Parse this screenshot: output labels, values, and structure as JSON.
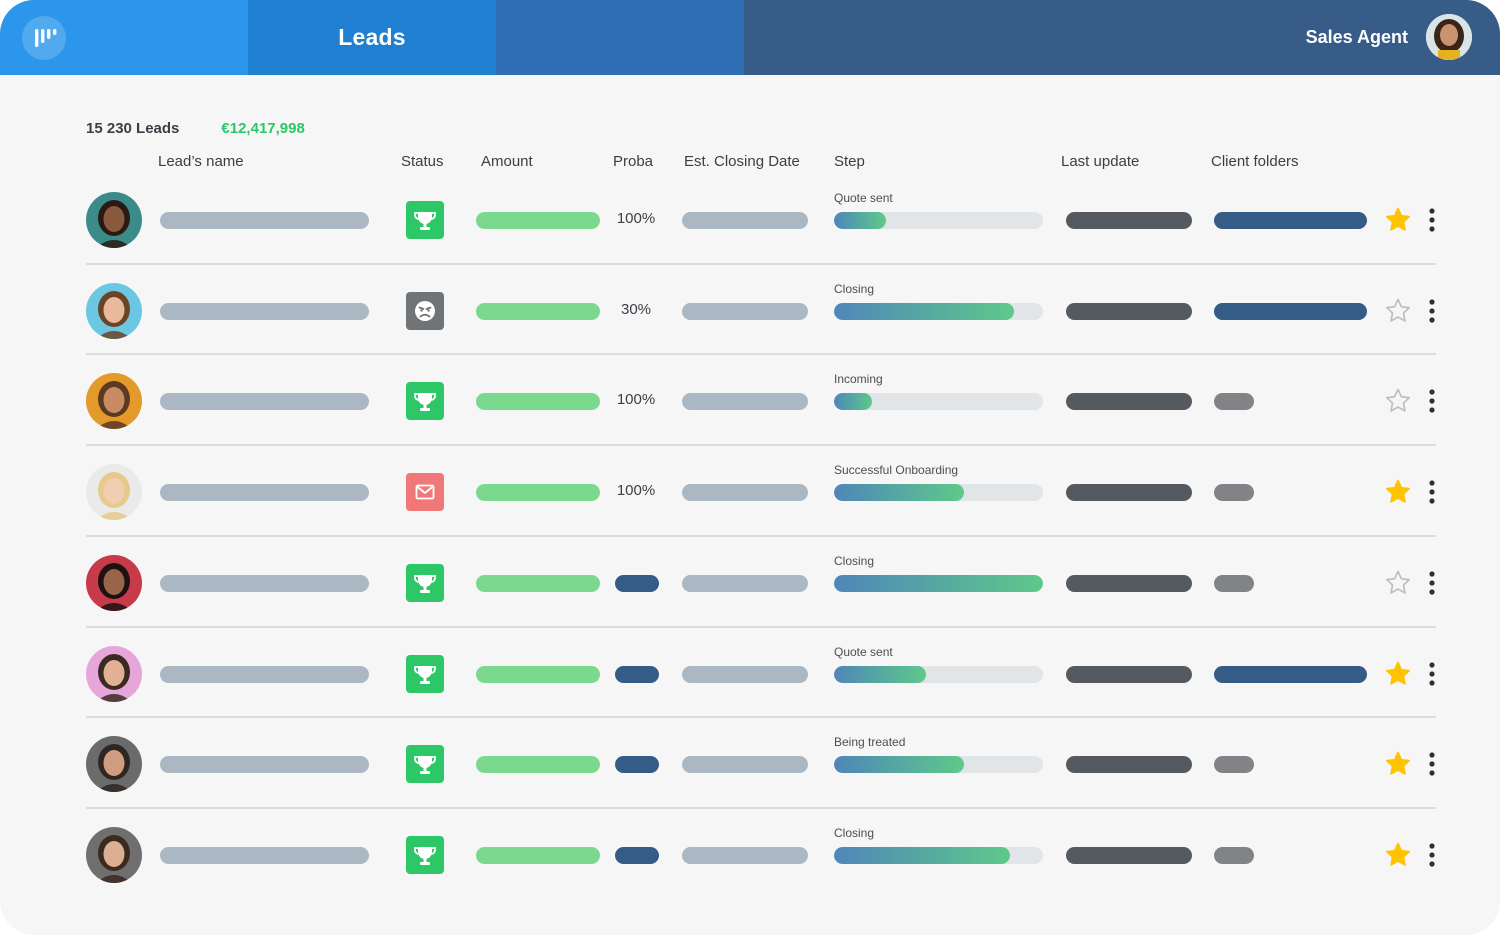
{
  "header": {
    "active_tab": "Leads",
    "user_name": "Sales Agent",
    "colors": [
      "#2b96eb",
      "#1f7fd0",
      "#2f6eb5",
      "#365c87"
    ]
  },
  "summary": {
    "lead_count": "15 230 Leads",
    "total_amount": "€12,417,998"
  },
  "columns": {
    "name": "Lead’s name",
    "status": "Status",
    "amount": "Amount",
    "proba": "Proba",
    "closing": "Est. Closing Date",
    "step": "Step",
    "update": "Last update",
    "folders": "Client folders"
  },
  "rows": [
    {
      "status": "won",
      "proba": "100%",
      "step": "Quote sent",
      "progress": 0.25,
      "folder": "long",
      "starred": true
    },
    {
      "status": "lost",
      "proba": "30%",
      "step": "Closing",
      "progress": 0.86,
      "folder": "long",
      "starred": false
    },
    {
      "status": "won",
      "proba": "100%",
      "step": "Incoming",
      "progress": 0.18,
      "folder": "short",
      "starred": false
    },
    {
      "status": "mail",
      "proba": "100%",
      "step": "Successful Onboarding",
      "progress": 0.62,
      "folder": "short",
      "starred": true
    },
    {
      "status": "won",
      "proba": "",
      "step": "Closing",
      "progress": 1.0,
      "folder": "short",
      "starred": false
    },
    {
      "status": "won",
      "proba": "",
      "step": "Quote sent",
      "progress": 0.44,
      "folder": "long",
      "starred": true
    },
    {
      "status": "won",
      "proba": "",
      "step": "Being treated",
      "progress": 0.62,
      "folder": "short",
      "starred": true
    },
    {
      "status": "won",
      "proba": "",
      "step": "Closing",
      "progress": 0.84,
      "folder": "short",
      "starred": true
    }
  ],
  "status_colors": {
    "won": "#2ec767",
    "lost": "#707477",
    "mail": "#f07878"
  },
  "avatar_colors": [
    "#3b8b8b",
    "#6cc7e3",
    "#e39a2a",
    "#eaeaea",
    "#c73a4a",
    "#e7a6d9",
    "#6b6b6b",
    "#6f6f6f"
  ],
  "icons": {
    "logo": "bars-logo-icon",
    "won": "trophy-icon",
    "lost": "angry-face-icon",
    "mail": "envelope-icon",
    "star": "star-icon",
    "menu": "kebab-menu-icon"
  }
}
